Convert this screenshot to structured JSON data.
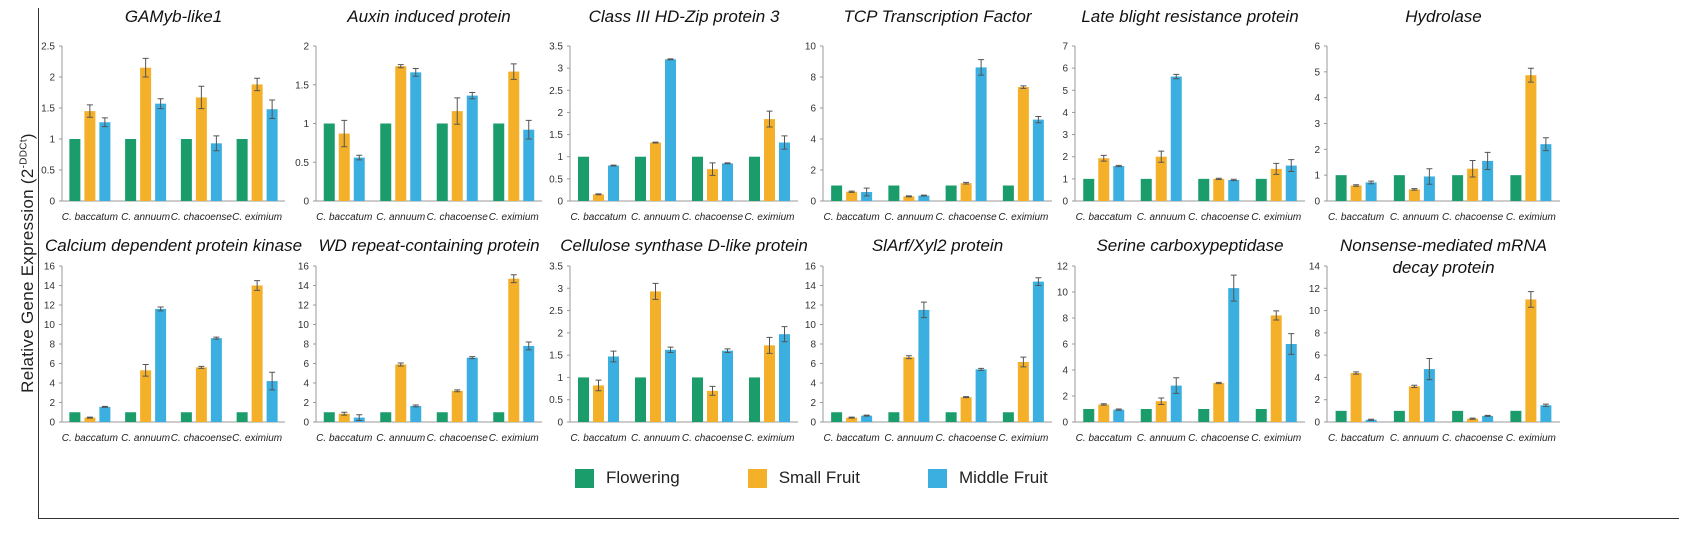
{
  "ylabel": {
    "main": "Relative Gene Expression (2",
    "sup": "-DDCt",
    "close": ")"
  },
  "legend": [
    {
      "label": "Flowering",
      "color": "#1b9c6b"
    },
    {
      "label": "Small Fruit",
      "color": "#f5b02a"
    },
    {
      "label": "Middle Fruit",
      "color": "#3aafe0"
    }
  ],
  "chart_data": [
    {
      "type": "bar",
      "title": [
        "GAMyb-like1"
      ],
      "categories": [
        "C. baccatum",
        "C. annuum",
        "C. chacoense",
        "C. eximium"
      ],
      "ylim": [
        0,
        2.5
      ],
      "yticks": [
        "0",
        "0.5",
        "1",
        "1.5",
        "2",
        "2.5"
      ],
      "series": [
        {
          "name": "Flowering",
          "values": [
            1,
            1,
            1,
            1
          ],
          "errors": [
            0,
            0,
            0,
            0
          ]
        },
        {
          "name": "Small Fruit",
          "values": [
            1.45,
            2.15,
            1.67,
            1.88
          ],
          "errors": [
            0.1,
            0.15,
            0.18,
            0.1
          ]
        },
        {
          "name": "Middle Fruit",
          "values": [
            1.27,
            1.57,
            0.93,
            1.48
          ],
          "errors": [
            0.07,
            0.08,
            0.12,
            0.15
          ]
        }
      ]
    },
    {
      "type": "bar",
      "title": [
        "Auxin induced protein"
      ],
      "categories": [
        "C. baccatum",
        "C. annuum",
        "C. chacoense",
        "C. eximium"
      ],
      "ylim": [
        0,
        2
      ],
      "yticks": [
        "0",
        "0.5",
        "1",
        "1.5",
        "2"
      ],
      "series": [
        {
          "name": "Flowering",
          "values": [
            1,
            1,
            1,
            1
          ],
          "errors": [
            0,
            0,
            0,
            0
          ]
        },
        {
          "name": "Small Fruit",
          "values": [
            0.87,
            1.74,
            1.16,
            1.67
          ],
          "errors": [
            0.17,
            0.02,
            0.17,
            0.1
          ]
        },
        {
          "name": "Middle Fruit",
          "values": [
            0.56,
            1.66,
            1.36,
            0.92
          ],
          "errors": [
            0.03,
            0.05,
            0.04,
            0.12
          ]
        }
      ]
    },
    {
      "type": "bar",
      "title": [
        "Class III HD-Zip protein 3"
      ],
      "categories": [
        "C. baccatum",
        "C. annuum",
        "C. chacoense",
        "C. eximium"
      ],
      "ylim": [
        0,
        3.5
      ],
      "yticks": [
        "0",
        "0.5",
        "1",
        "1.5",
        "2",
        "2.5",
        "3",
        "3.5"
      ],
      "series": [
        {
          "name": "Flowering",
          "values": [
            1,
            1,
            1,
            1
          ],
          "errors": [
            0,
            0,
            0,
            0
          ]
        },
        {
          "name": "Small Fruit",
          "values": [
            0.15,
            1.32,
            0.72,
            1.85
          ],
          "errors": [
            0.01,
            0.01,
            0.14,
            0.18
          ]
        },
        {
          "name": "Middle Fruit",
          "values": [
            0.8,
            3.2,
            0.85,
            1.32
          ],
          "errors": [
            0.01,
            0.01,
            0.01,
            0.15
          ]
        }
      ]
    },
    {
      "type": "bar",
      "title": [
        "TCP Transcription Factor"
      ],
      "categories": [
        "C. baccatum",
        "C. annuum",
        "C. chacoense",
        "C. eximium"
      ],
      "ylim": [
        0,
        10
      ],
      "yticks": [
        "0",
        "2",
        "4",
        "6",
        "8",
        "10"
      ],
      "series": [
        {
          "name": "Flowering",
          "values": [
            1,
            1,
            1,
            1
          ],
          "errors": [
            0,
            0,
            0,
            0
          ]
        },
        {
          "name": "Small Fruit",
          "values": [
            0.6,
            0.3,
            1.15,
            7.35
          ],
          "errors": [
            0.04,
            0.03,
            0.05,
            0.08
          ]
        },
        {
          "name": "Middle Fruit",
          "values": [
            0.58,
            0.35,
            8.62,
            5.25
          ],
          "errors": [
            0.25,
            0.03,
            0.5,
            0.2
          ]
        }
      ]
    },
    {
      "type": "bar",
      "title": [
        "Late blight resistance protein"
      ],
      "categories": [
        "C. baccatum",
        "C. annuum",
        "C. chacoense",
        "C. eximium"
      ],
      "ylim": [
        0,
        7
      ],
      "yticks": [
        "0",
        "1",
        "2",
        "3",
        "4",
        "5",
        "6",
        "7"
      ],
      "series": [
        {
          "name": "Flowering",
          "values": [
            1,
            1,
            1,
            1
          ],
          "errors": [
            0,
            0,
            0,
            0
          ]
        },
        {
          "name": "Small Fruit",
          "values": [
            1.93,
            2.0,
            1.0,
            1.45
          ],
          "errors": [
            0.13,
            0.25,
            0.03,
            0.25
          ]
        },
        {
          "name": "Middle Fruit",
          "values": [
            1.58,
            5.62,
            0.95,
            1.6
          ],
          "errors": [
            0.03,
            0.1,
            0.03,
            0.27
          ]
        }
      ]
    },
    {
      "type": "bar",
      "title": [
        "Hydrolase"
      ],
      "categories": [
        "C. baccatum",
        "C. annuum",
        "C. chacoense",
        "C. eximium"
      ],
      "ylim": [
        0,
        6
      ],
      "yticks": [
        "0",
        "1",
        "2",
        "3",
        "4",
        "5",
        "6"
      ],
      "series": [
        {
          "name": "Flowering",
          "values": [
            1,
            1,
            1,
            1
          ],
          "errors": [
            0,
            0,
            0,
            0
          ]
        },
        {
          "name": "Small Fruit",
          "values": [
            0.6,
            0.45,
            1.25,
            4.87
          ],
          "errors": [
            0.03,
            0.03,
            0.32,
            0.27
          ]
        },
        {
          "name": "Middle Fruit",
          "values": [
            0.72,
            0.95,
            1.55,
            2.2
          ],
          "errors": [
            0.05,
            0.3,
            0.33,
            0.25
          ]
        }
      ]
    },
    {
      "type": "bar",
      "title": [
        "Calcium dependent protein kinase"
      ],
      "categories": [
        "C. baccatum",
        "C. annuum",
        "C. chacoense",
        "C. eximium"
      ],
      "ylim": [
        0,
        16
      ],
      "yticks": [
        "0",
        "2",
        "4",
        "6",
        "8",
        "10",
        "12",
        "14",
        "16"
      ],
      "series": [
        {
          "name": "Flowering",
          "values": [
            1,
            1,
            1,
            1
          ],
          "errors": [
            0,
            0,
            0,
            0
          ]
        },
        {
          "name": "Small Fruit",
          "values": [
            0.45,
            5.3,
            5.6,
            14.0
          ],
          "errors": [
            0.05,
            0.6,
            0.1,
            0.5
          ]
        },
        {
          "name": "Middle Fruit",
          "values": [
            1.55,
            11.6,
            8.6,
            4.2
          ],
          "errors": [
            0.05,
            0.2,
            0.1,
            0.9
          ]
        }
      ]
    },
    {
      "type": "bar",
      "title": [
        "WD repeat-containing protein"
      ],
      "categories": [
        "C. baccatum",
        "C. annuum",
        "C. chacoense",
        "C. eximium"
      ],
      "ylim": [
        0,
        16
      ],
      "yticks": [
        "0",
        "2",
        "4",
        "6",
        "8",
        "10",
        "12",
        "14",
        "16"
      ],
      "series": [
        {
          "name": "Flowering",
          "values": [
            1,
            1,
            1,
            1
          ],
          "errors": [
            0,
            0,
            0,
            0
          ]
        },
        {
          "name": "Small Fruit",
          "values": [
            0.85,
            5.9,
            3.2,
            14.7
          ],
          "errors": [
            0.15,
            0.15,
            0.1,
            0.4
          ]
        },
        {
          "name": "Middle Fruit",
          "values": [
            0.45,
            1.65,
            6.6,
            7.8
          ],
          "errors": [
            0.3,
            0.1,
            0.1,
            0.4
          ]
        }
      ]
    },
    {
      "type": "bar",
      "title": [
        "Cellulose synthase D-like protein"
      ],
      "categories": [
        "C. baccatum",
        "C. annuum",
        "C. chacoense",
        "C. eximium"
      ],
      "ylim": [
        0,
        3.5
      ],
      "yticks": [
        "0",
        "0.5",
        "1",
        "1.5",
        "2",
        "2.5",
        "3",
        "3.5"
      ],
      "series": [
        {
          "name": "Flowering",
          "values": [
            1,
            1,
            1,
            1
          ],
          "errors": [
            0,
            0,
            0,
            0
          ]
        },
        {
          "name": "Small Fruit",
          "values": [
            0.82,
            2.93,
            0.7,
            1.72
          ],
          "errors": [
            0.12,
            0.18,
            0.1,
            0.18
          ]
        },
        {
          "name": "Middle Fruit",
          "values": [
            1.47,
            1.62,
            1.6,
            1.97
          ],
          "errors": [
            0.12,
            0.06,
            0.04,
            0.17
          ]
        }
      ]
    },
    {
      "type": "bar",
      "title": [
        "SlArf/Xyl2 protein"
      ],
      "categories": [
        "C. baccatum",
        "C. annuum",
        "C. chacoense",
        "C. eximium"
      ],
      "ylim": [
        0,
        16
      ],
      "yticks": [
        "0",
        "2",
        "4",
        "6",
        "8",
        "10",
        "12",
        "14",
        "16"
      ],
      "series": [
        {
          "name": "Flowering",
          "values": [
            1,
            1,
            1,
            1
          ],
          "errors": [
            0,
            0,
            0,
            0
          ]
        },
        {
          "name": "Small Fruit",
          "values": [
            0.45,
            6.65,
            2.55,
            6.15
          ],
          "errors": [
            0.05,
            0.15,
            0.05,
            0.5
          ]
        },
        {
          "name": "Middle Fruit",
          "values": [
            0.65,
            11.5,
            5.4,
            14.4
          ],
          "errors": [
            0.05,
            0.8,
            0.1,
            0.4
          ]
        }
      ]
    },
    {
      "type": "bar",
      "title": [
        "Serine carboxypeptidase"
      ],
      "categories": [
        "C. baccatum",
        "C. annuum",
        "C. chacoense",
        "C. eximium"
      ],
      "ylim": [
        0,
        12
      ],
      "yticks": [
        "0",
        "2",
        "4",
        "6",
        "8",
        "10",
        "12"
      ],
      "series": [
        {
          "name": "Flowering",
          "values": [
            1,
            1,
            1,
            1
          ],
          "errors": [
            0,
            0,
            0,
            0
          ]
        },
        {
          "name": "Small Fruit",
          "values": [
            1.35,
            1.6,
            3.0,
            8.2
          ],
          "errors": [
            0.05,
            0.25,
            0.05,
            0.35
          ]
        },
        {
          "name": "Middle Fruit",
          "values": [
            0.95,
            2.8,
            10.3,
            6.0
          ],
          "errors": [
            0.05,
            0.6,
            1.0,
            0.8
          ]
        }
      ]
    },
    {
      "type": "bar",
      "title": [
        "Nonsense-mediated mRNA",
        "decay protein"
      ],
      "categories": [
        "C. baccatum",
        "C. annuum",
        "C. chacoense",
        "C. eximium"
      ],
      "ylim": [
        0,
        14
      ],
      "yticks": [
        "0",
        "2",
        "4",
        "6",
        "8",
        "10",
        "12",
        "14"
      ],
      "series": [
        {
          "name": "Flowering",
          "values": [
            1,
            1,
            1,
            1
          ],
          "errors": [
            0,
            0,
            0,
            0
          ]
        },
        {
          "name": "Small Fruit",
          "values": [
            4.4,
            3.2,
            0.3,
            11.0
          ],
          "errors": [
            0.1,
            0.1,
            0.05,
            0.7
          ]
        },
        {
          "name": "Middle Fruit",
          "values": [
            0.2,
            4.75,
            0.55,
            1.5
          ],
          "errors": [
            0.05,
            0.95,
            0.05,
            0.1
          ]
        }
      ]
    }
  ]
}
